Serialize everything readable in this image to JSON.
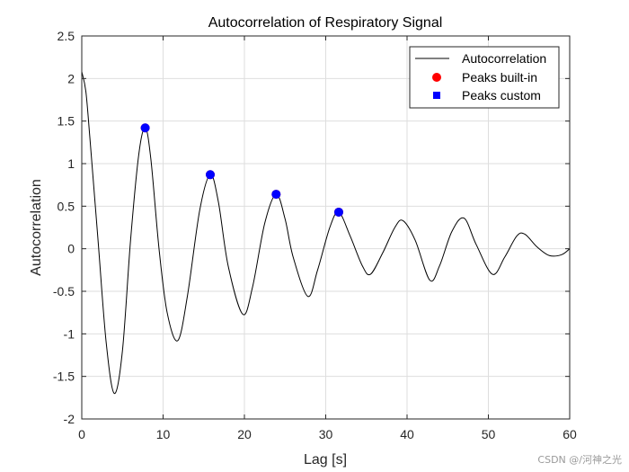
{
  "watermark": "CSDN @/河神之光",
  "chart_data": {
    "type": "line",
    "title": "Autocorrelation of Respiratory Signal",
    "xlabel": "Lag [s]",
    "ylabel": "Autocorrelation",
    "xlim": [
      0,
      60
    ],
    "ylim": [
      -2,
      2.5
    ],
    "xticks": [
      0,
      10,
      20,
      30,
      40,
      50,
      60
    ],
    "yticks": [
      -2,
      -1.5,
      -1,
      -0.5,
      0,
      0.5,
      1,
      1.5,
      2,
      2.5
    ],
    "xtick_labels": [
      "0",
      "10",
      "20",
      "30",
      "40",
      "50",
      "60"
    ],
    "ytick_labels": [
      "-2",
      "-1.5",
      "-1",
      "-0.5",
      "0",
      "0.5",
      "1",
      "1.5",
      "2",
      "2.5"
    ],
    "grid": true,
    "legend_position": "top-right",
    "colors": {
      "line": "#000000",
      "builtin": "#ff0000",
      "custom": "#0000ff",
      "grid": "#dedede",
      "axes": "#262626"
    },
    "series": [
      {
        "name": "Autocorrelation",
        "style": "line",
        "x": [
          0,
          0.5,
          1,
          2,
          3,
          4,
          5,
          6,
          7,
          7.8,
          8.5,
          9.5,
          10.5,
          11.8,
          13,
          14.5,
          15.8,
          16.8,
          18,
          19.8,
          21,
          22.5,
          23.9,
          25,
          26,
          27.8,
          29,
          30.5,
          31.6,
          33,
          34.5,
          35.5,
          37,
          38.5,
          39.5,
          41,
          42.8,
          44,
          45.5,
          47,
          48.5,
          50.5,
          52,
          53.5,
          54.5,
          56,
          57.5,
          59,
          60
        ],
        "y": [
          2.08,
          1.85,
          1.3,
          0.1,
          -1.1,
          -1.7,
          -1.2,
          0.1,
          1.1,
          1.42,
          1.05,
          0.0,
          -0.75,
          -1.08,
          -0.55,
          0.45,
          0.87,
          0.55,
          -0.2,
          -0.77,
          -0.45,
          0.3,
          0.64,
          0.35,
          -0.1,
          -0.56,
          -0.25,
          0.25,
          0.43,
          0.15,
          -0.2,
          -0.3,
          -0.05,
          0.25,
          0.33,
          0.1,
          -0.37,
          -0.2,
          0.2,
          0.36,
          0.05,
          -0.3,
          -0.1,
          0.15,
          0.17,
          0.02,
          -0.08,
          -0.07,
          0.0
        ]
      },
      {
        "name": "Peaks built-in",
        "style": "marker-circle",
        "x": [
          7.8,
          15.8,
          23.9,
          31.6
        ],
        "y": [
          1.42,
          0.87,
          0.64,
          0.43
        ]
      },
      {
        "name": "Peaks custom",
        "style": "marker-square",
        "x": [
          7.8,
          15.8,
          23.9,
          31.6
        ],
        "y": [
          1.42,
          0.87,
          0.64,
          0.43
        ]
      }
    ]
  }
}
